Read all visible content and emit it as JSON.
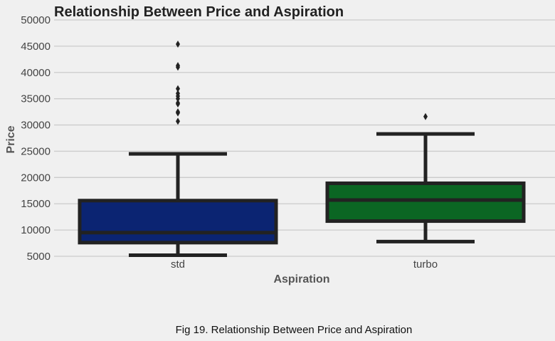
{
  "chart_data": {
    "type": "box",
    "title": "Relationship Between Price and Aspiration",
    "xlabel": "Aspiration",
    "ylabel": "Price",
    "ylim": [
      5000,
      50000
    ],
    "yticks": [
      5000,
      10000,
      15000,
      20000,
      25000,
      30000,
      35000,
      40000,
      45000,
      50000
    ],
    "grid": true,
    "categories": [
      "std",
      "turbo"
    ],
    "boxes": [
      {
        "category": "std",
        "color": "#0b2472",
        "whisker_low": 5200,
        "q1": 7600,
        "median": 9500,
        "q3": 15600,
        "whisker_high": 24500,
        "outliers": [
          30700,
          32300,
          32500,
          34000,
          34200,
          35000,
          35500,
          36000,
          36900,
          41000,
          41300,
          45400
        ]
      },
      {
        "category": "turbo",
        "color": "#0b6623",
        "whisker_low": 7800,
        "q1": 11700,
        "median": 15700,
        "q3": 18900,
        "whisker_high": 28300,
        "outliers": [
          31600
        ]
      }
    ]
  },
  "caption": "Fig 19. Relationship Between Price and Aspiration",
  "colors": {
    "background": "#f0f0f0",
    "grid": "#cbcbcb",
    "box_edge": "#222222"
  }
}
